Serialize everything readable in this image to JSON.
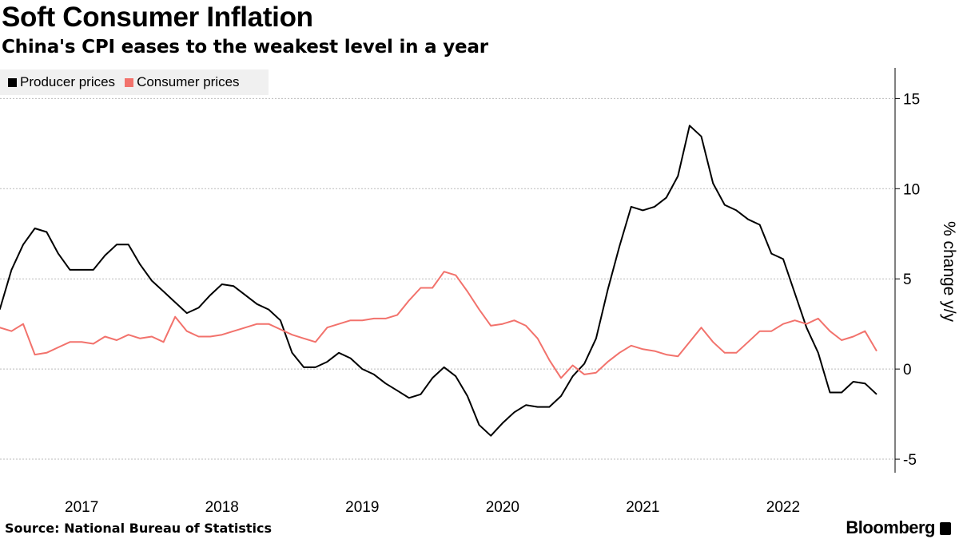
{
  "title": "Soft Consumer Inflation",
  "subtitle": "China's CPI eases to the weakest level in a year",
  "source": "Source:  National Bureau of Statistics",
  "logo": "Bloomberg",
  "chart_data": {
    "type": "line",
    "ylabel": "% change y/y",
    "ylim": [
      -5.75,
      16.7
    ],
    "yticks": [
      15,
      10,
      5,
      0,
      -5
    ],
    "xticks": [
      "2017",
      "2018",
      "2019",
      "2020",
      "2021",
      "2022"
    ],
    "grid": true,
    "legend_position": "top-left",
    "x_start": "2016-11",
    "x_end": "2023-02",
    "series": [
      {
        "name": "Producer prices",
        "color": "#000000",
        "values": [
          3.3,
          5.5,
          6.9,
          7.8,
          7.6,
          6.4,
          5.5,
          5.5,
          5.5,
          6.3,
          6.9,
          6.9,
          5.8,
          4.9,
          4.3,
          3.7,
          3.1,
          3.4,
          4.1,
          4.7,
          4.6,
          4.1,
          3.6,
          3.3,
          2.7,
          0.9,
          0.1,
          0.1,
          0.4,
          0.9,
          0.6,
          0.0,
          -0.3,
          -0.8,
          -1.2,
          -1.6,
          -1.4,
          -0.5,
          0.1,
          -0.4,
          -1.5,
          -3.1,
          -3.7,
          -3.0,
          -2.4,
          -2.0,
          -2.1,
          -2.1,
          -1.5,
          -0.4,
          0.3,
          1.7,
          4.4,
          6.8,
          9.0,
          8.8,
          9.0,
          9.5,
          10.7,
          13.5,
          12.9,
          10.3,
          9.1,
          8.8,
          8.3,
          8.0,
          6.4,
          6.1,
          4.2,
          2.3,
          0.9,
          -1.3,
          -1.3,
          -0.7,
          -0.8,
          -1.4
        ]
      },
      {
        "name": "Consumer prices",
        "color": "#f2726c",
        "values": [
          2.3,
          2.1,
          2.5,
          0.8,
          0.9,
          1.2,
          1.5,
          1.5,
          1.4,
          1.8,
          1.6,
          1.9,
          1.7,
          1.8,
          1.5,
          2.9,
          2.1,
          1.8,
          1.8,
          1.9,
          2.1,
          2.3,
          2.5,
          2.5,
          2.2,
          1.9,
          1.7,
          1.5,
          2.3,
          2.5,
          2.7,
          2.7,
          2.8,
          2.8,
          3.0,
          3.8,
          4.5,
          4.5,
          5.4,
          5.2,
          4.3,
          3.3,
          2.4,
          2.5,
          2.7,
          2.4,
          1.7,
          0.5,
          -0.5,
          0.2,
          -0.3,
          -0.2,
          0.4,
          0.9,
          1.3,
          1.1,
          1.0,
          0.8,
          0.7,
          1.5,
          2.3,
          1.5,
          0.9,
          0.9,
          1.5,
          2.1,
          2.1,
          2.5,
          2.7,
          2.5,
          2.8,
          2.1,
          1.6,
          1.8,
          2.1,
          1.0
        ]
      }
    ]
  }
}
